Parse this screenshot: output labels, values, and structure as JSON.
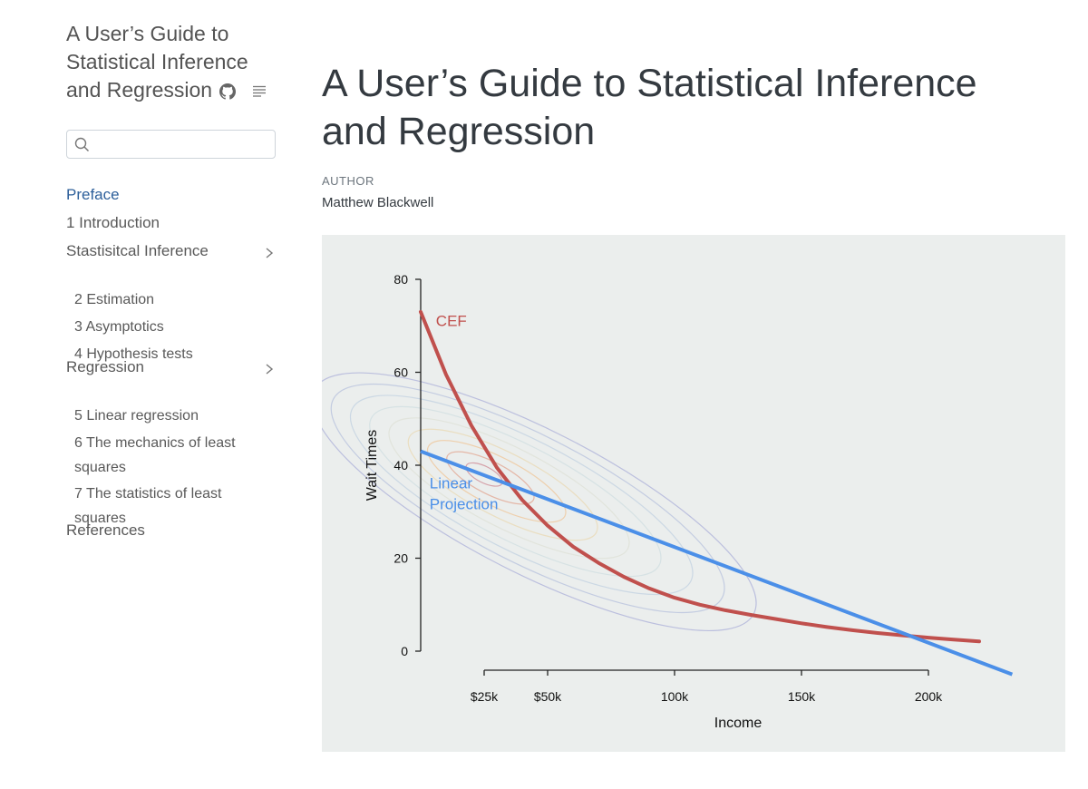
{
  "sidebar": {
    "title_lines": [
      "A User’s Guide to",
      "Statistical Inference",
      "and Regression"
    ],
    "search": {
      "value": "",
      "placeholder": ""
    },
    "nav": [
      {
        "label": "Preface",
        "active": true
      },
      {
        "label": "1  Introduction"
      },
      {
        "label": "Stastisitcal Inference",
        "expandable": true
      },
      {
        "label": "2  Estimation",
        "sub": true
      },
      {
        "label": "3  Asymptotics",
        "sub": true
      },
      {
        "label": "4  Hypothesis tests",
        "sub": true
      },
      {
        "label": "Regression",
        "expandable": true
      },
      {
        "label": "5  Linear regression",
        "sub": true
      },
      {
        "label": "6  The mechanics of least squares",
        "sub": true
      },
      {
        "label": "7  The statistics of least squares",
        "sub": true
      },
      {
        "label": "References"
      }
    ]
  },
  "main": {
    "title": "A User’s Guide to Statistical Inference and Regression",
    "author_label": "AUTHOR",
    "author": "Matthew Blackwell"
  },
  "colors": {
    "cef": "#c0504d",
    "linear": "#4b8fe8",
    "link": "#2d5f9a",
    "figure_bg": "#ebeeed"
  },
  "chart_data": {
    "type": "line",
    "title": "",
    "xlabel": "Income",
    "ylabel": "Wait Times",
    "xlim": [
      0,
      220000
    ],
    "ylim": [
      0,
      80
    ],
    "x_ticks": [
      25000,
      50000,
      100000,
      150000,
      200000
    ],
    "x_tick_labels": [
      "$25k",
      "$50k",
      "100k",
      "150k",
      "200k"
    ],
    "y_ticks": [
      0,
      20,
      40,
      60,
      80
    ],
    "y_tick_labels": [
      "0",
      "20",
      "40",
      "60",
      "80"
    ],
    "series": [
      {
        "name": "CEF",
        "x": [
          0,
          10000,
          20000,
          30000,
          40000,
          50000,
          60000,
          70000,
          80000,
          90000,
          100000,
          110000,
          120000,
          130000,
          140000,
          150000,
          160000,
          170000,
          180000,
          190000,
          200000,
          210000,
          220000
        ],
        "y": [
          73,
          59.5,
          48.5,
          39.5,
          32.5,
          27,
          22.5,
          19,
          16,
          13.5,
          11.5,
          10,
          8.8,
          7.8,
          6.9,
          6,
          5.2,
          4.5,
          3.9,
          3.4,
          2.9,
          2.5,
          2.1
        ]
      },
      {
        "name": "Linear Projection",
        "x": [
          0,
          233000
        ],
        "y": [
          43,
          -5
        ]
      }
    ],
    "annotations": [
      {
        "text": "CEF",
        "x": 6000,
        "y": 70
      },
      {
        "text": "Linear",
        "x": 3500,
        "y": 35
      },
      {
        "text": "Projection",
        "x": 3500,
        "y": 30.5
      }
    ],
    "density_contours": {
      "center": [
        25000,
        38
      ],
      "levels": 9
    },
    "grid": false,
    "legend": "none"
  }
}
